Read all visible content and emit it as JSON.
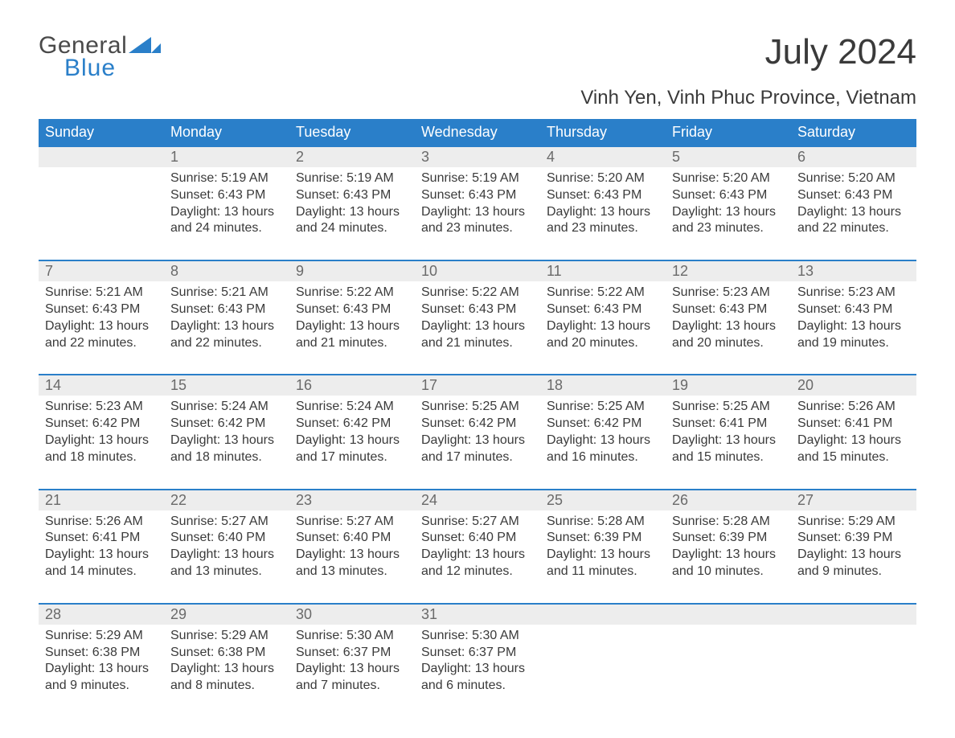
{
  "logo": {
    "line1": "General",
    "line2": "Blue"
  },
  "title": {
    "month": "July 2024",
    "location": "Vinh Yen, Vinh Phuc Province, Vietnam"
  },
  "colors": {
    "header_bg": "#2a7fc9",
    "header_text": "#ffffff",
    "date_row_bg": "#ededed",
    "date_text": "#6a6a6a",
    "body_text": "#3a3a3a",
    "week_border": "#2a7fc9",
    "page_bg": "#ffffff",
    "logo_gray": "#4a4a4a",
    "logo_blue": "#2a7fc9"
  },
  "typography": {
    "month_title_size": 44,
    "location_size": 24,
    "day_header_size": 18,
    "date_size": 18,
    "cell_size": 16
  },
  "day_headers": [
    "Sunday",
    "Monday",
    "Tuesday",
    "Wednesday",
    "Thursday",
    "Friday",
    "Saturday"
  ],
  "weeks": [
    {
      "dates": [
        "",
        "1",
        "2",
        "3",
        "4",
        "5",
        "6"
      ],
      "cells": [
        null,
        {
          "sunrise": "Sunrise: 5:19 AM",
          "sunset": "Sunset: 6:43 PM",
          "daylight": "Daylight: 13 hours and 24 minutes."
        },
        {
          "sunrise": "Sunrise: 5:19 AM",
          "sunset": "Sunset: 6:43 PM",
          "daylight": "Daylight: 13 hours and 24 minutes."
        },
        {
          "sunrise": "Sunrise: 5:19 AM",
          "sunset": "Sunset: 6:43 PM",
          "daylight": "Daylight: 13 hours and 23 minutes."
        },
        {
          "sunrise": "Sunrise: 5:20 AM",
          "sunset": "Sunset: 6:43 PM",
          "daylight": "Daylight: 13 hours and 23 minutes."
        },
        {
          "sunrise": "Sunrise: 5:20 AM",
          "sunset": "Sunset: 6:43 PM",
          "daylight": "Daylight: 13 hours and 23 minutes."
        },
        {
          "sunrise": "Sunrise: 5:20 AM",
          "sunset": "Sunset: 6:43 PM",
          "daylight": "Daylight: 13 hours and 22 minutes."
        }
      ]
    },
    {
      "dates": [
        "7",
        "8",
        "9",
        "10",
        "11",
        "12",
        "13"
      ],
      "cells": [
        {
          "sunrise": "Sunrise: 5:21 AM",
          "sunset": "Sunset: 6:43 PM",
          "daylight": "Daylight: 13 hours and 22 minutes."
        },
        {
          "sunrise": "Sunrise: 5:21 AM",
          "sunset": "Sunset: 6:43 PM",
          "daylight": "Daylight: 13 hours and 22 minutes."
        },
        {
          "sunrise": "Sunrise: 5:22 AM",
          "sunset": "Sunset: 6:43 PM",
          "daylight": "Daylight: 13 hours and 21 minutes."
        },
        {
          "sunrise": "Sunrise: 5:22 AM",
          "sunset": "Sunset: 6:43 PM",
          "daylight": "Daylight: 13 hours and 21 minutes."
        },
        {
          "sunrise": "Sunrise: 5:22 AM",
          "sunset": "Sunset: 6:43 PM",
          "daylight": "Daylight: 13 hours and 20 minutes."
        },
        {
          "sunrise": "Sunrise: 5:23 AM",
          "sunset": "Sunset: 6:43 PM",
          "daylight": "Daylight: 13 hours and 20 minutes."
        },
        {
          "sunrise": "Sunrise: 5:23 AM",
          "sunset": "Sunset: 6:43 PM",
          "daylight": "Daylight: 13 hours and 19 minutes."
        }
      ]
    },
    {
      "dates": [
        "14",
        "15",
        "16",
        "17",
        "18",
        "19",
        "20"
      ],
      "cells": [
        {
          "sunrise": "Sunrise: 5:23 AM",
          "sunset": "Sunset: 6:42 PM",
          "daylight": "Daylight: 13 hours and 18 minutes."
        },
        {
          "sunrise": "Sunrise: 5:24 AM",
          "sunset": "Sunset: 6:42 PM",
          "daylight": "Daylight: 13 hours and 18 minutes."
        },
        {
          "sunrise": "Sunrise: 5:24 AM",
          "sunset": "Sunset: 6:42 PM",
          "daylight": "Daylight: 13 hours and 17 minutes."
        },
        {
          "sunrise": "Sunrise: 5:25 AM",
          "sunset": "Sunset: 6:42 PM",
          "daylight": "Daylight: 13 hours and 17 minutes."
        },
        {
          "sunrise": "Sunrise: 5:25 AM",
          "sunset": "Sunset: 6:42 PM",
          "daylight": "Daylight: 13 hours and 16 minutes."
        },
        {
          "sunrise": "Sunrise: 5:25 AM",
          "sunset": "Sunset: 6:41 PM",
          "daylight": "Daylight: 13 hours and 15 minutes."
        },
        {
          "sunrise": "Sunrise: 5:26 AM",
          "sunset": "Sunset: 6:41 PM",
          "daylight": "Daylight: 13 hours and 15 minutes."
        }
      ]
    },
    {
      "dates": [
        "21",
        "22",
        "23",
        "24",
        "25",
        "26",
        "27"
      ],
      "cells": [
        {
          "sunrise": "Sunrise: 5:26 AM",
          "sunset": "Sunset: 6:41 PM",
          "daylight": "Daylight: 13 hours and 14 minutes."
        },
        {
          "sunrise": "Sunrise: 5:27 AM",
          "sunset": "Sunset: 6:40 PM",
          "daylight": "Daylight: 13 hours and 13 minutes."
        },
        {
          "sunrise": "Sunrise: 5:27 AM",
          "sunset": "Sunset: 6:40 PM",
          "daylight": "Daylight: 13 hours and 13 minutes."
        },
        {
          "sunrise": "Sunrise: 5:27 AM",
          "sunset": "Sunset: 6:40 PM",
          "daylight": "Daylight: 13 hours and 12 minutes."
        },
        {
          "sunrise": "Sunrise: 5:28 AM",
          "sunset": "Sunset: 6:39 PM",
          "daylight": "Daylight: 13 hours and 11 minutes."
        },
        {
          "sunrise": "Sunrise: 5:28 AM",
          "sunset": "Sunset: 6:39 PM",
          "daylight": "Daylight: 13 hours and 10 minutes."
        },
        {
          "sunrise": "Sunrise: 5:29 AM",
          "sunset": "Sunset: 6:39 PM",
          "daylight": "Daylight: 13 hours and 9 minutes."
        }
      ]
    },
    {
      "dates": [
        "28",
        "29",
        "30",
        "31",
        "",
        "",
        ""
      ],
      "cells": [
        {
          "sunrise": "Sunrise: 5:29 AM",
          "sunset": "Sunset: 6:38 PM",
          "daylight": "Daylight: 13 hours and 9 minutes."
        },
        {
          "sunrise": "Sunrise: 5:29 AM",
          "sunset": "Sunset: 6:38 PM",
          "daylight": "Daylight: 13 hours and 8 minutes."
        },
        {
          "sunrise": "Sunrise: 5:30 AM",
          "sunset": "Sunset: 6:37 PM",
          "daylight": "Daylight: 13 hours and 7 minutes."
        },
        {
          "sunrise": "Sunrise: 5:30 AM",
          "sunset": "Sunset: 6:37 PM",
          "daylight": "Daylight: 13 hours and 6 minutes."
        },
        null,
        null,
        null
      ]
    }
  ]
}
